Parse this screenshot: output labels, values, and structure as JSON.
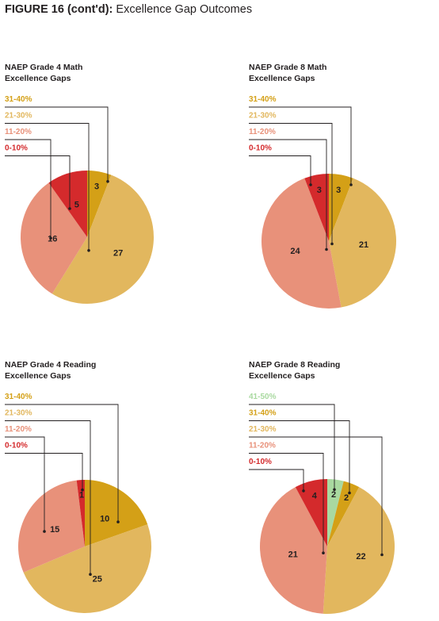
{
  "figure": {
    "label": "FIGURE 16 (cont'd):",
    "title": "Excellence Gap Outcomes"
  },
  "colors": {
    "41-50%": "#a9d9a0",
    "31-40%": "#d4a017",
    "21-30%": "#e2b75e",
    "11-20%": "#e8917a",
    "0-10%": "#d42a2c",
    "leader": "#231f20"
  },
  "chart_data": [
    {
      "type": "pie",
      "title_line1": "NAEP Grade 4 Math",
      "title_line2": "Excellence Gaps",
      "legend": [
        "31-40%",
        "21-30%",
        "11-20%",
        "0-10%"
      ],
      "slices": [
        {
          "category": "31-40%",
          "value": 3
        },
        {
          "category": "21-30%",
          "value": 27
        },
        {
          "category": "11-20%",
          "value": 16
        },
        {
          "category": "0-10%",
          "value": 5
        }
      ]
    },
    {
      "type": "pie",
      "title_line1": "NAEP Grade 8 Math",
      "title_line2": "Excellence Gaps",
      "legend": [
        "31-40%",
        "21-30%",
        "11-20%",
        "0-10%"
      ],
      "slices": [
        {
          "category": "31-40%",
          "value": 3
        },
        {
          "category": "21-30%",
          "value": 21
        },
        {
          "category": "11-20%",
          "value": 24
        },
        {
          "category": "0-10%",
          "value": 3
        }
      ]
    },
    {
      "type": "pie",
      "title_line1": "NAEP Grade 4 Reading",
      "title_line2": "Excellence Gaps",
      "legend": [
        "31-40%",
        "21-30%",
        "11-20%",
        "0-10%"
      ],
      "slices": [
        {
          "category": "31-40%",
          "value": 10
        },
        {
          "category": "21-30%",
          "value": 25
        },
        {
          "category": "11-20%",
          "value": 15
        },
        {
          "category": "0-10%",
          "value": 1
        }
      ]
    },
    {
      "type": "pie",
      "title_line1": "NAEP Grade 8 Reading",
      "title_line2": "Excellence Gaps",
      "legend": [
        "41-50%",
        "31-40%",
        "21-30%",
        "11-20%",
        "0-10%"
      ],
      "slices": [
        {
          "category": "41-50%",
          "value": 2
        },
        {
          "category": "31-40%",
          "value": 2
        },
        {
          "category": "21-30%",
          "value": 22
        },
        {
          "category": "11-20%",
          "value": 21
        },
        {
          "category": "0-10%",
          "value": 4
        }
      ]
    }
  ]
}
